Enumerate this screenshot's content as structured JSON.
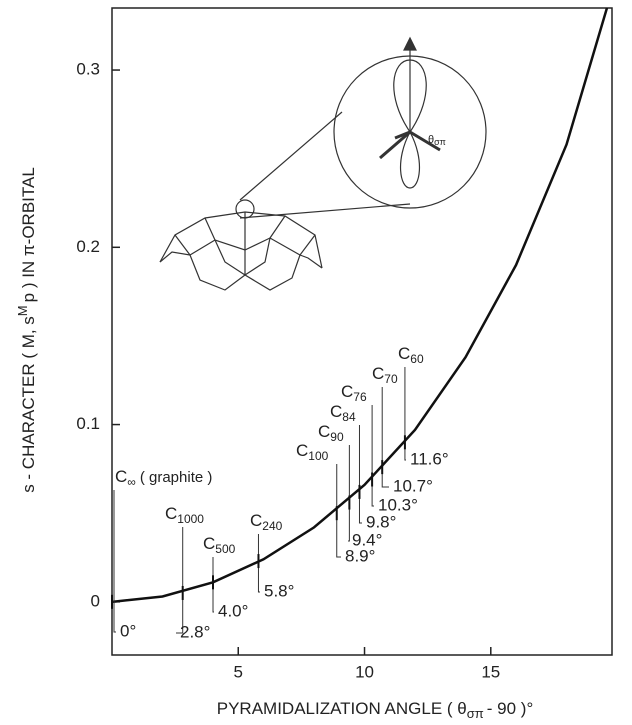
{
  "chart_data": {
    "type": "line",
    "x_label": {
      "before": "PYRAMIDALIZATION ANGLE ( θ",
      "sub": "σπ",
      "after": "- 90 )°"
    },
    "y_label": {
      "before": "s - CHARACTER ( M, s",
      "sup": "M",
      "after": "p ) IN π-ORBITAL"
    },
    "inset_label": {
      "text": "θ",
      "sub": "σπ"
    },
    "xlim": [
      0,
      19.8
    ],
    "ylim": [
      -0.03,
      0.335
    ],
    "xticks": [
      5,
      10,
      15
    ],
    "yticks": [
      0,
      0.1,
      0.2,
      0.3
    ],
    "series": [
      {
        "color": "#111111",
        "x": [
          0,
          2,
          4,
          6,
          8,
          10,
          12,
          14,
          16,
          18,
          19.6
        ],
        "values": [
          0,
          0.003,
          0.011,
          0.024,
          0.042,
          0.066,
          0.097,
          0.138,
          0.19,
          0.258,
          0.335
        ]
      }
    ],
    "annotations": [
      {
        "name": "C",
        "sub": "∞",
        "note": "( graphite )",
        "x": 0,
        "y": 0,
        "angle_label": "0°"
      },
      {
        "name": "C",
        "sub": "1000",
        "x": 2.8,
        "y": 0.005,
        "angle_label": "2.8°"
      },
      {
        "name": "C",
        "sub": "500",
        "x": 4.0,
        "y": 0.011,
        "angle_label": "4.0°"
      },
      {
        "name": "C",
        "sub": "240",
        "x": 5.8,
        "y": 0.023,
        "angle_label": "5.8°"
      },
      {
        "name": "C",
        "sub": "100",
        "x": 8.9,
        "y": 0.05,
        "angle_label": "8.9°"
      },
      {
        "name": "C",
        "sub": "90",
        "x": 9.4,
        "y": 0.056,
        "angle_label": "9.4°"
      },
      {
        "name": "C",
        "sub": "84",
        "x": 9.8,
        "y": 0.062,
        "angle_label": "9.8°"
      },
      {
        "name": "C",
        "sub": "76",
        "x": 10.3,
        "y": 0.069,
        "angle_label": "10.3°"
      },
      {
        "name": "C",
        "sub": "70",
        "x": 10.7,
        "y": 0.076,
        "angle_label": "10.7°"
      },
      {
        "name": "C",
        "sub": "60",
        "x": 11.6,
        "y": 0.09,
        "angle_label": "11.6°"
      }
    ]
  }
}
